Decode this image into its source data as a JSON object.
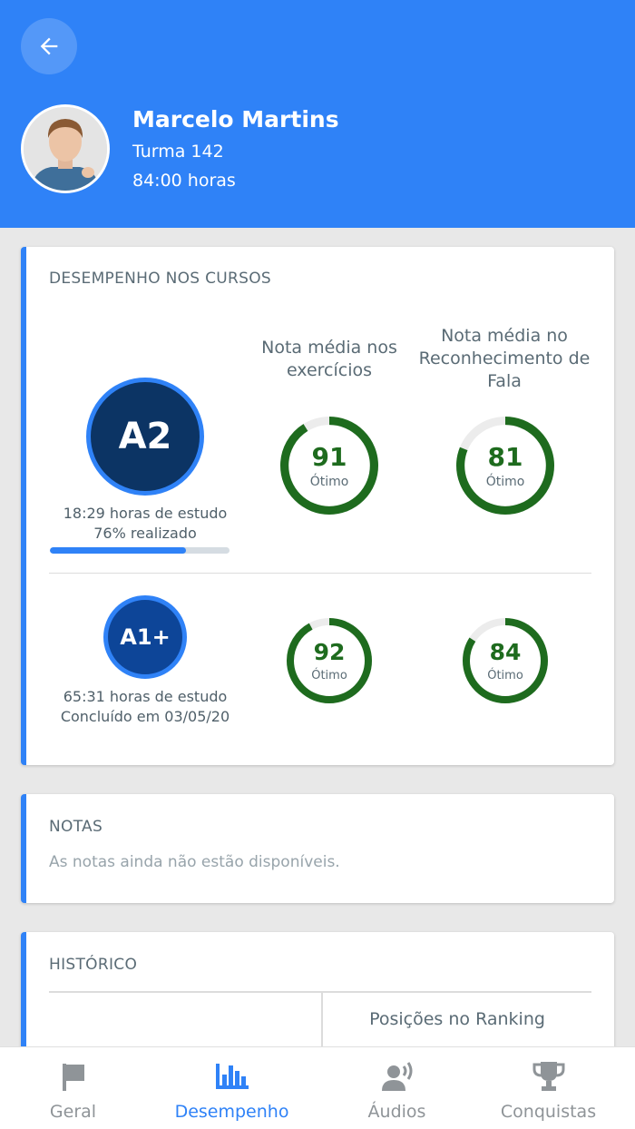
{
  "profile": {
    "name": "Marcelo Martins",
    "class": "Turma 142",
    "hours": "84:00 horas"
  },
  "performance": {
    "title": "DESEMPENHO NOS CURSOS",
    "col_exercises": "Nota média nos exercícios",
    "col_speech": "Nota média no Reconhecimento de Fala",
    "courses": [
      {
        "level": "A2",
        "study_hours": "18:29 horas de estudo",
        "status": "76% realizado",
        "progress": 0.76,
        "exercise_score": "91",
        "exercise_label": "Ótimo",
        "speech_score": "81",
        "speech_label": "Ótimo"
      },
      {
        "level": "A1+",
        "study_hours": "65:31 horas de estudo",
        "status": "Concluído em 03/05/20",
        "exercise_score": "92",
        "exercise_label": "Ótimo",
        "speech_score": "84",
        "speech_label": "Ótimo"
      }
    ]
  },
  "notes": {
    "title": "NOTAS",
    "message": "As notas ainda não estão disponíveis."
  },
  "history": {
    "title": "HISTÓRICO",
    "ranking_label": "Posições no Ranking"
  },
  "nav": {
    "items": [
      {
        "label": "Geral",
        "icon": "flag-icon"
      },
      {
        "label": "Desempenho",
        "icon": "bar-chart-icon"
      },
      {
        "label": "Áudios",
        "icon": "speaking-person-icon"
      },
      {
        "label": "Conquistas",
        "icon": "trophy-icon"
      }
    ],
    "active_index": 1
  },
  "colors": {
    "primary": "#2f82f7",
    "score_green": "#1e6b1e",
    "level_a2": "#0c3464",
    "level_a1": "#0d4598"
  }
}
